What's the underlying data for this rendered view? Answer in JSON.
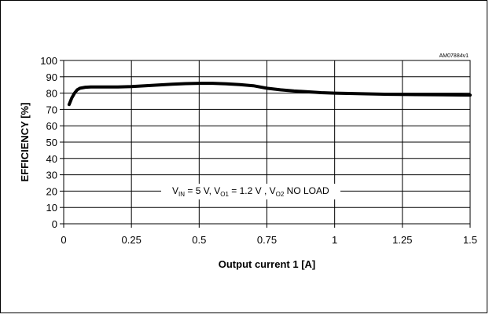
{
  "chart_data": {
    "type": "line",
    "watermark": "AM07884v1",
    "xlabel": "Output current 1  [A]",
    "ylabel": "EFFICIENCY [%]",
    "xlim": [
      0,
      1.5
    ],
    "ylim": [
      0,
      100
    ],
    "xticks": [
      "0",
      "0.25",
      "0.5",
      "0.75",
      "1",
      "1.25",
      "1.5"
    ],
    "yticks": [
      "0",
      "10",
      "20",
      "30",
      "40",
      "50",
      "60",
      "70",
      "80",
      "90",
      "100"
    ],
    "grid": true,
    "annotation": {
      "parts": [
        {
          "t": "V",
          "sub": false
        },
        {
          "t": "IN",
          "sub": true
        },
        {
          "t": " = 5 V, V",
          "sub": false
        },
        {
          "t": "O1",
          "sub": true
        },
        {
          "t": " = 1.2 V , V",
          "sub": false
        },
        {
          "t": "O2",
          "sub": true
        },
        {
          "t": "  NO LOAD",
          "sub": false
        }
      ]
    },
    "series": [
      {
        "color": "#000000",
        "x": [
          0.02,
          0.03,
          0.04,
          0.05,
          0.06,
          0.08,
          0.1,
          0.15,
          0.2,
          0.25,
          0.3,
          0.35,
          0.4,
          0.45,
          0.5,
          0.55,
          0.6,
          0.65,
          0.7,
          0.75,
          0.8,
          0.85,
          0.9,
          0.95,
          1.0,
          1.1,
          1.2,
          1.3,
          1.4,
          1.5
        ],
        "y": [
          73,
          77,
          80,
          82,
          83,
          83.6,
          83.8,
          83.8,
          83.8,
          84,
          84.5,
          85,
          85.5,
          85.8,
          86,
          86,
          85.7,
          85.2,
          84.5,
          83,
          82,
          81.3,
          80.8,
          80.3,
          80,
          79.6,
          79.3,
          79.1,
          79,
          78.8
        ]
      }
    ]
  }
}
